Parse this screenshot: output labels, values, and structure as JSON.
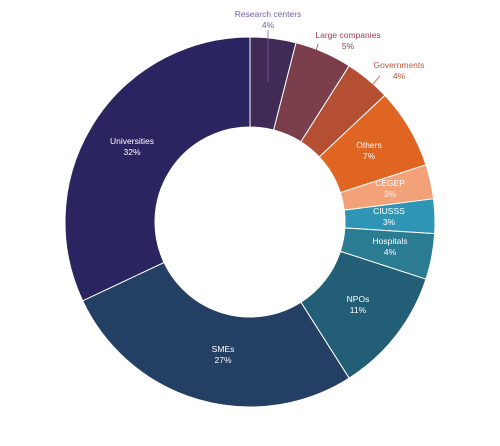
{
  "chart_data": {
    "type": "pie",
    "donut": true,
    "title": "",
    "legend": "none",
    "slices": [
      {
        "label": "Research centers",
        "value": 4,
        "display": "4%",
        "color": "#3f2b55",
        "label_color": "#7b5ea8"
      },
      {
        "label": "Large companies",
        "value": 5,
        "display": "5%",
        "color": "#7a3f4b",
        "label_color": "#9b3f50"
      },
      {
        "label": "Governments",
        "value": 4,
        "display": "4%",
        "color": "#b44f33",
        "label_color": "#c2572f"
      },
      {
        "label": "Others",
        "value": 7,
        "display": "7%",
        "color": "#e06422",
        "label_color": "#ffffff"
      },
      {
        "label": "CEGEP",
        "value": 3,
        "display": "3%",
        "color": "#f3a178",
        "label_color": "#ffffff"
      },
      {
        "label": "CIUSSS",
        "value": 3,
        "display": "3%",
        "color": "#2f95b5",
        "label_color": "#ffffff"
      },
      {
        "label": "Hospitals",
        "value": 4,
        "display": "4%",
        "color": "#2b7b92",
        "label_color": "#ffffff"
      },
      {
        "label": "NPOs",
        "value": 11,
        "display": "11%",
        "color": "#225e76",
        "label_color": "#ffffff"
      },
      {
        "label": "SMEs",
        "value": 27,
        "display": "27%",
        "color": "#233f63",
        "label_color": "#ffffff"
      },
      {
        "label": "Universities",
        "value": 32,
        "display": "32%",
        "color": "#2a2460",
        "label_color": "#ffffff"
      }
    ]
  }
}
